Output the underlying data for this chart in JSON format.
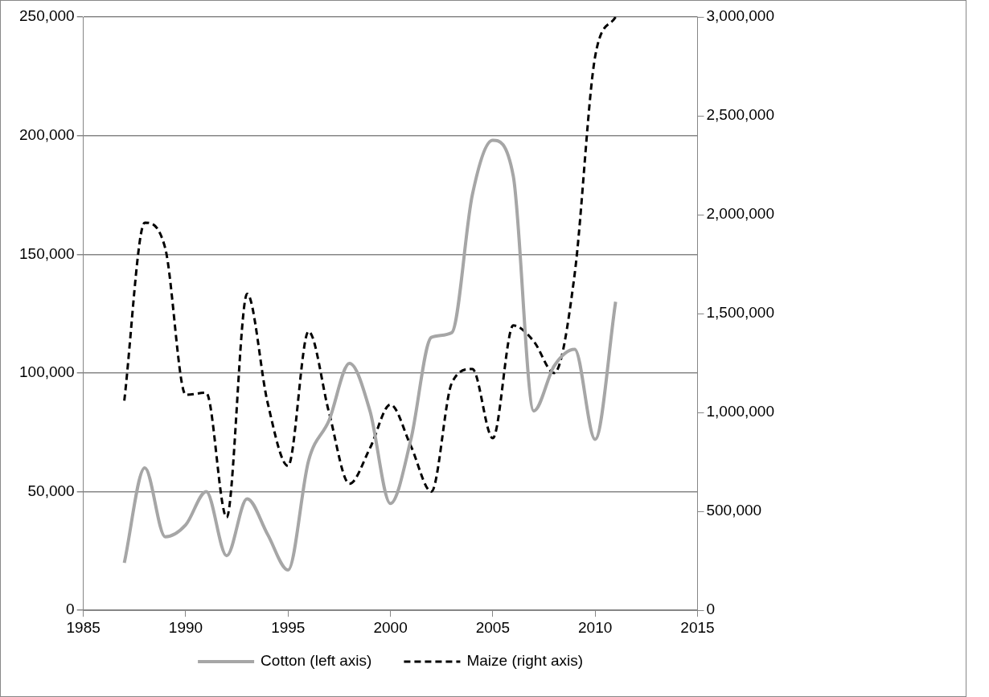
{
  "chart_data": {
    "type": "line",
    "x": [
      1987,
      1988,
      1989,
      1990,
      1991,
      1992,
      1993,
      1994,
      1995,
      1996,
      1997,
      1998,
      1999,
      2000,
      2001,
      2002,
      2003,
      2004,
      2005,
      2006,
      2007,
      2008,
      2009,
      2010,
      2011
    ],
    "series": [
      {
        "name": "Cotton (left axis)",
        "color": "#a6a6a6",
        "line_style": "solid",
        "values": [
          20000,
          60000,
          31000,
          36000,
          50000,
          23000,
          47000,
          32000,
          17000,
          63000,
          80000,
          104000,
          84000,
          45000,
          72000,
          115000,
          117000,
          175000,
          198000,
          183000,
          84000,
          103000,
          110000,
          72000,
          130000
        ]
      },
      {
        "name": "Maize (right axis)",
        "color": "#000000",
        "line_style": "dashed",
        "axis": "y2",
        "values": [
          1060000,
          1960000,
          1830000,
          1090000,
          1100000,
          470000,
          1600000,
          1050000,
          730000,
          1410000,
          1000000,
          640000,
          820000,
          1040000,
          830000,
          600000,
          1150000,
          1220000,
          870000,
          1440000,
          1360000,
          1200000,
          1700000,
          2800000,
          3000000
        ]
      }
    ],
    "xlim": [
      1985,
      2015
    ],
    "xticks": [
      1985,
      1990,
      1995,
      2000,
      2005,
      2010,
      2015
    ],
    "ylim": [
      0,
      250000
    ],
    "yticks": [
      0,
      {
        "value": 50000,
        "label": "50,000"
      },
      {
        "value": 100000,
        "label": "100,000"
      },
      {
        "value": 150000,
        "label": "150,000"
      },
      {
        "value": 200000,
        "label": "200,000"
      },
      {
        "value": 250000,
        "label": "250,000"
      }
    ],
    "y2lim": [
      0,
      3000000
    ],
    "y2ticks": [
      0,
      {
        "value": 500000,
        "label": "500,000"
      },
      {
        "value": 1000000,
        "label": "1,000,000"
      },
      {
        "value": 1500000,
        "label": "1,500,000"
      },
      {
        "value": 2000000,
        "label": "2,000,000"
      },
      {
        "value": 2500000,
        "label": "2,500,000"
      },
      {
        "value": 3000000,
        "label": "3,000,000"
      }
    ],
    "grid": "y",
    "legend": "bottom",
    "marker": "none"
  }
}
